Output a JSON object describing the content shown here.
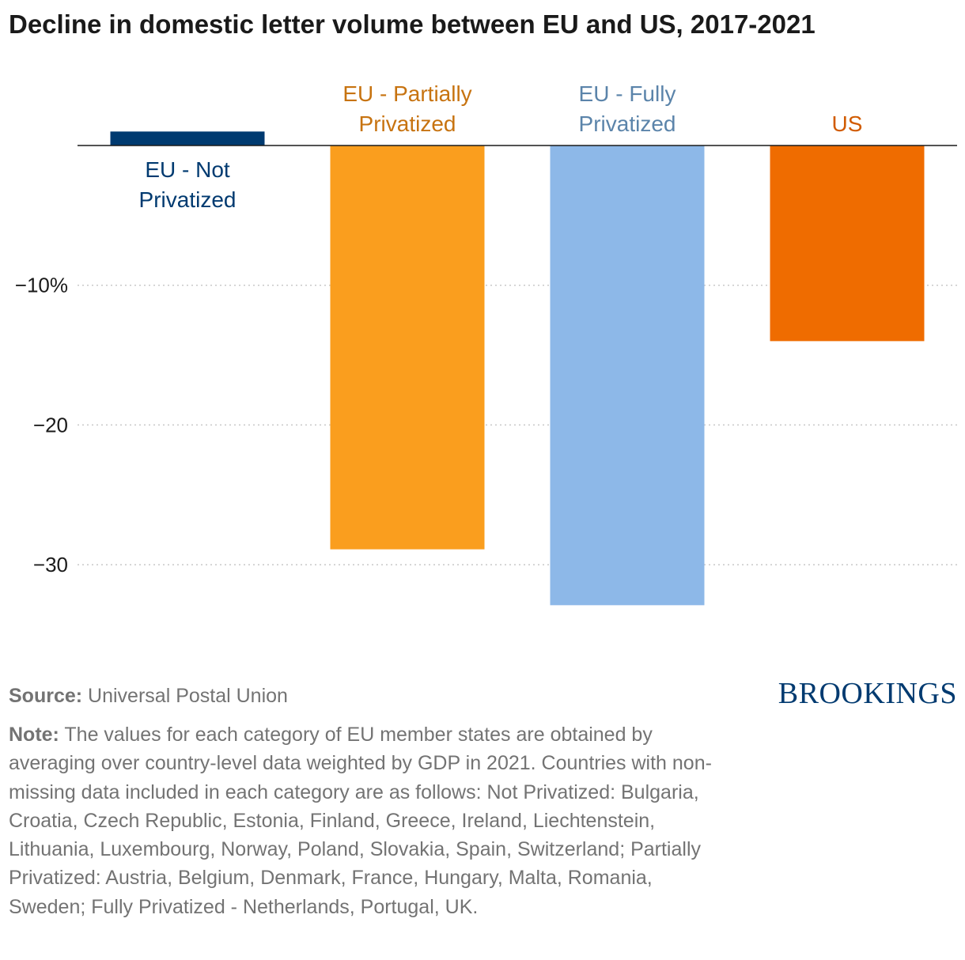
{
  "title": "Decline in domestic letter volume between EU and US, 2017-2021",
  "chart_data": {
    "type": "bar",
    "title": "Decline in domestic letter volume between EU and US, 2017-2021",
    "xlabel": "",
    "ylabel": "",
    "unit": "%",
    "ylim": [
      -34,
      0
    ],
    "grid": true,
    "yticks": [
      {
        "value": -10,
        "label": "−10%"
      },
      {
        "value": -20,
        "label": "−20"
      },
      {
        "value": -30,
        "label": "−30"
      }
    ],
    "bars": [
      {
        "label_lines": [
          "EU - Not",
          "Privatized"
        ],
        "value": 1.0,
        "color": "#003a70"
      },
      {
        "label_lines": [
          "EU - Partially",
          "Privatized"
        ],
        "value": -28.9,
        "color": "#fa9e1e",
        "label_color": "#c77310"
      },
      {
        "label_lines": [
          "EU - Fully",
          "Privatized"
        ],
        "value": -32.9,
        "color": "#8db8e8",
        "label_color": "#5b84aa"
      },
      {
        "label_lines": [
          "US"
        ],
        "value": -14.0,
        "color": "#ef6c00",
        "label_color": "#d15b00"
      }
    ]
  },
  "footer": {
    "source_label": "Source:",
    "source_text": "Universal Postal Union",
    "note_label": "Note:",
    "note_text": "The values for each category of EU member states are obtained by averaging over country-level data weighted by GDP in 2021. Countries with non-missing data included in each category are as follows: Not Privatized: Bulgaria, Croatia, Czech Republic, Estonia, Finland, Greece, Ireland, Liechtenstein, Lithuania, Luxembourg, Norway, Poland, Slovakia, Spain, Switzerland; Partially Privatized: Austria, Belgium, Denmark, France, Hungary, Malta, Romania, Sweden; Fully Privatized - Netherlands, Portugal, UK."
  },
  "brand": {
    "name": "BROOKINGS",
    "color": "#003a70"
  }
}
